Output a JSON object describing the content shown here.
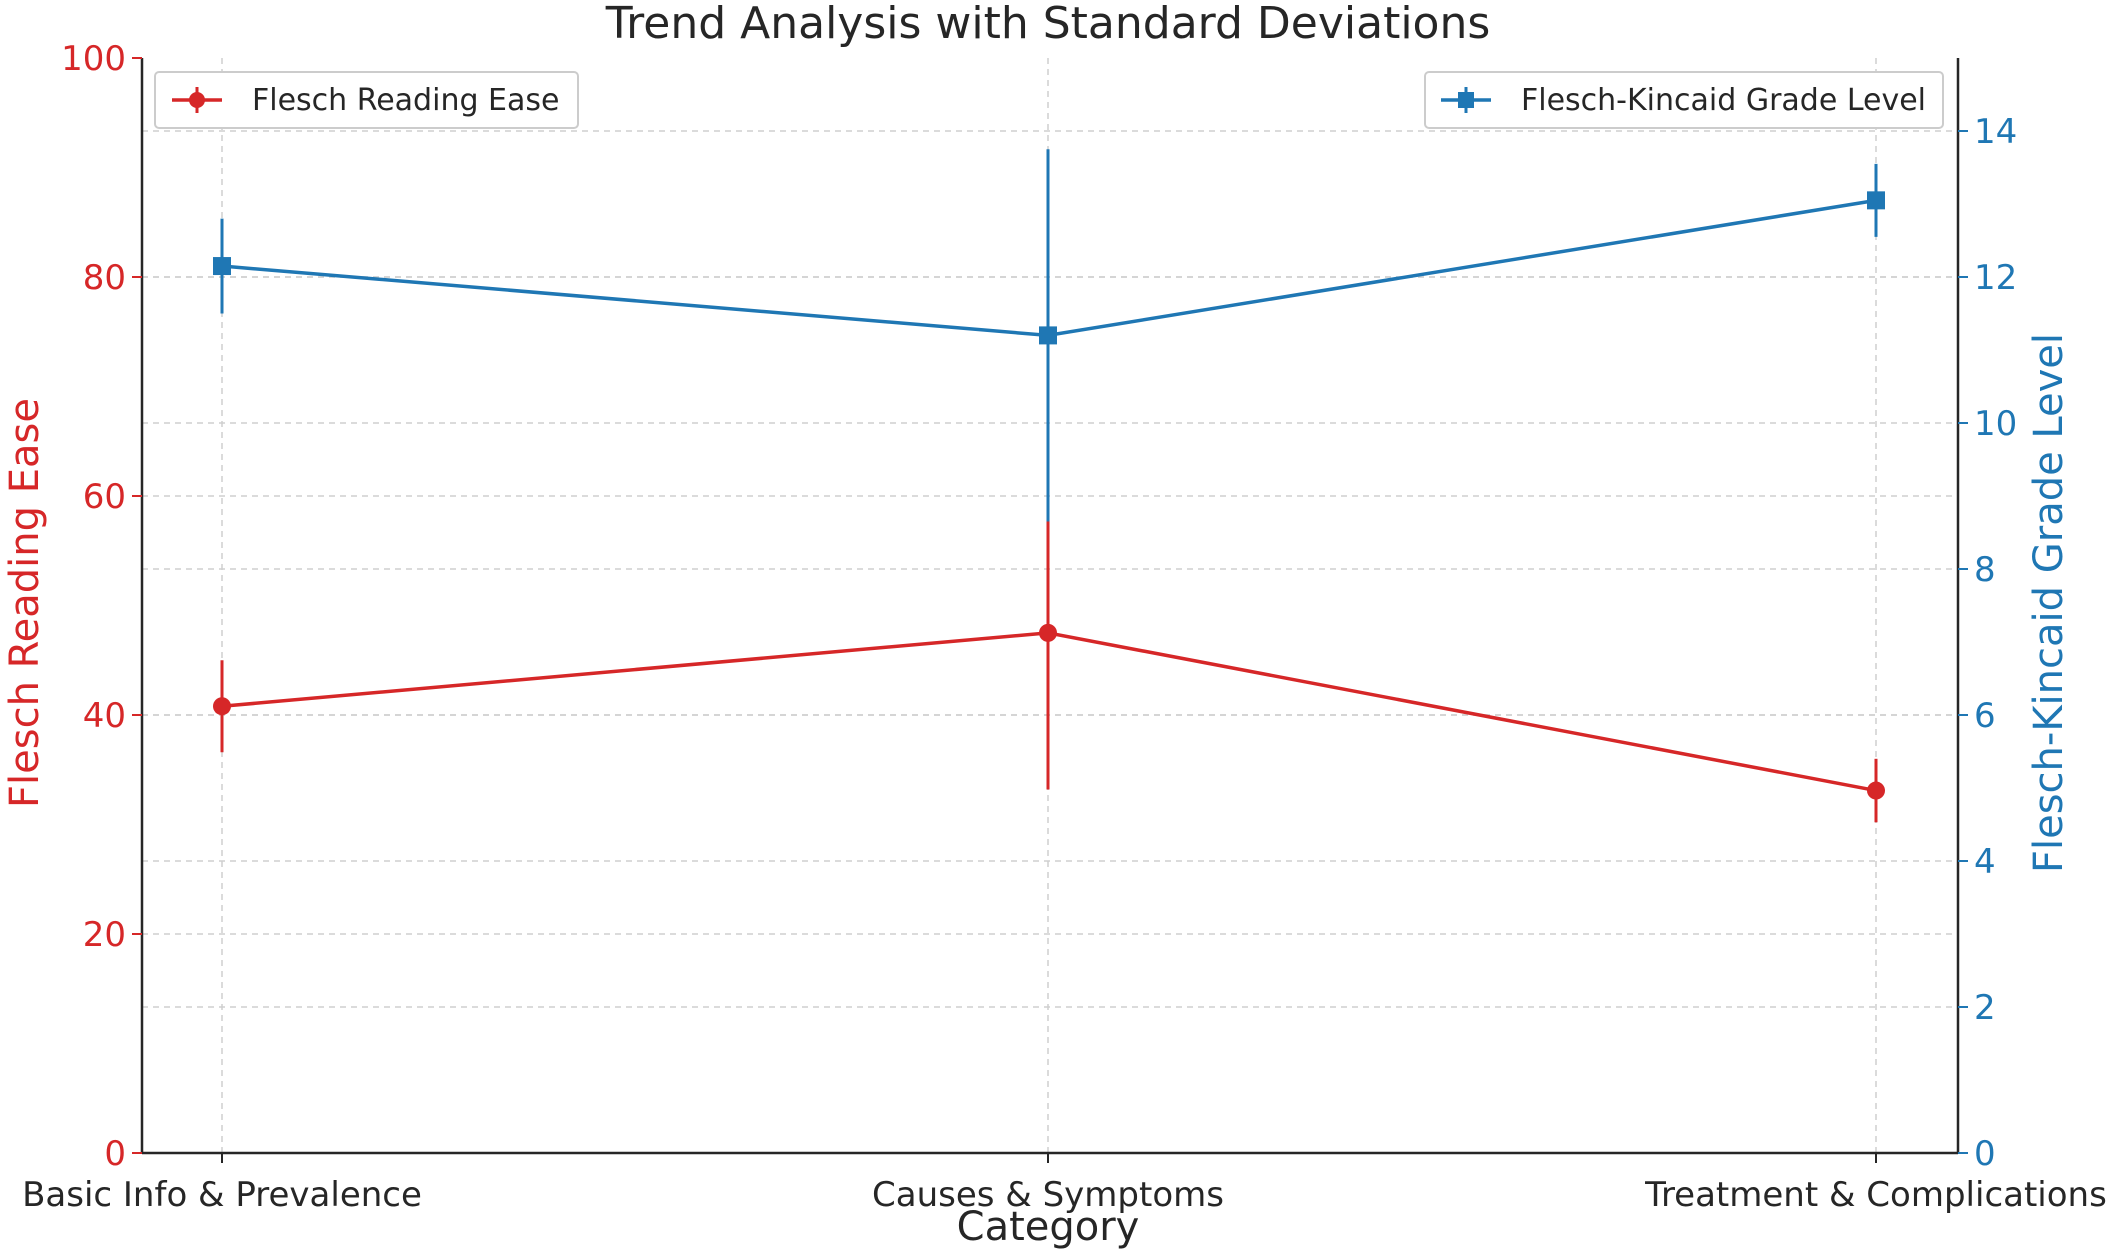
{
  "chart_data": {
    "type": "line",
    "title": "Trend Analysis with Standard Deviations",
    "xlabel": "Category",
    "categories": [
      "Basic Info & Prevalence",
      "Causes & Symptoms",
      "Treatment & Complications"
    ],
    "grid": true,
    "y_left": {
      "label": "Flesch Reading Ease",
      "color": "#d62728",
      "lim": [
        0,
        100
      ],
      "ticks": [
        0,
        20,
        40,
        60,
        80,
        100
      ]
    },
    "y_right": {
      "label": "Flesch-Kincaid Grade Level",
      "color": "#1f77b4",
      "lim": [
        0,
        15
      ],
      "ticks": [
        0,
        2,
        4,
        6,
        8,
        10,
        12,
        14
      ]
    },
    "series": [
      {
        "name": "Flesch Reading Ease",
        "axis": "left",
        "color": "#d62728",
        "marker": "circle",
        "values": [
          40.8,
          47.5,
          33.1
        ],
        "std": [
          4.2,
          14.3,
          2.9
        ],
        "legend_position": "top-left"
      },
      {
        "name": "Flesch-Kincaid Grade Level",
        "axis": "right",
        "color": "#1f77b4",
        "marker": "square",
        "values": [
          12.15,
          11.2,
          13.05
        ],
        "std": [
          0.65,
          2.55,
          0.5
        ],
        "legend_position": "top-right"
      }
    ]
  }
}
